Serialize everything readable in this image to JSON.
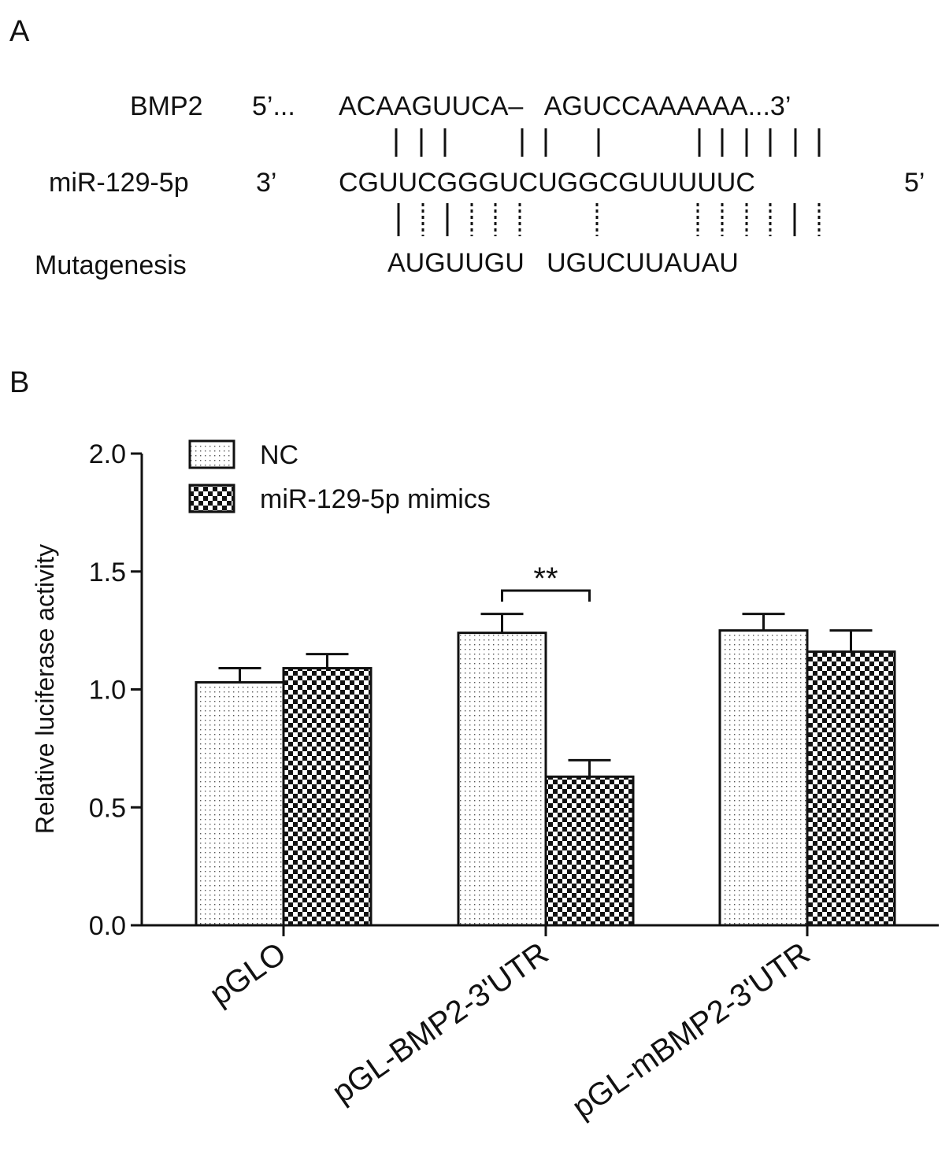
{
  "panel_a": {
    "panel_label": "A",
    "rows": [
      {
        "name": "BMP2",
        "left_end": "5’...",
        "sequence": "ACAAGUUCA–   AGUCCAAAAAA...3’",
        "right_end": ""
      },
      {
        "name": "miR-129-5p",
        "left_end": "3’",
        "sequence": "CGUUCGGGUCUGGCGUUUUUC",
        "right_end": "5’"
      },
      {
        "name": "Mutagenesis",
        "left_end": "",
        "sequence": "AUGUUGU   UGUCUUAUAU",
        "right_end": ""
      }
    ]
  },
  "chart_data": {
    "panel_label": "B",
    "type": "bar",
    "ylabel": "Relative luciferase activity",
    "xlabel": "",
    "ylim": [
      0,
      2.0
    ],
    "yticks": [
      "0.0",
      "0.5",
      "1.0",
      "1.5",
      "2.0"
    ],
    "categories": [
      "pGLO",
      "pGL-BMP2-3'UTR",
      "pGL-mBMP2-3'UTR"
    ],
    "series": [
      {
        "name": "NC",
        "pattern": "dots",
        "values": [
          1.03,
          1.24,
          1.25
        ],
        "errors": [
          0.06,
          0.08,
          0.07
        ]
      },
      {
        "name": "miR-129-5p mimics",
        "pattern": "checker",
        "values": [
          1.09,
          0.63,
          1.16
        ],
        "errors": [
          0.06,
          0.07,
          0.09
        ]
      }
    ],
    "legend_position": "top-left",
    "annotations": [
      {
        "text": "**",
        "category_index": 1
      }
    ],
    "grid": false
  }
}
